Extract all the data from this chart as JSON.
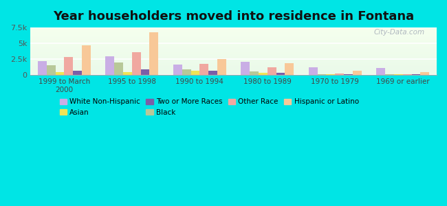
{
  "title": "Year householders moved into residence in Fontana",
  "categories": [
    "1999 to March\n2000",
    "1995 to 1998",
    "1990 to 1994",
    "1980 to 1989",
    "1970 to 1979",
    "1969 or earlier"
  ],
  "series": [
    {
      "label": "White Non-Hispanic",
      "color": "#c9aee5",
      "values": [
        2200,
        2900,
        1650,
        2050,
        1250,
        1150
      ]
    },
    {
      "label": "Black",
      "color": "#b8c898",
      "values": [
        1500,
        1950,
        850,
        600,
        80,
        80
      ]
    },
    {
      "label": "Asian",
      "color": "#f0e455",
      "values": [
        450,
        450,
        650,
        350,
        80,
        80
      ]
    },
    {
      "label": "Other Race",
      "color": "#f0a8a0",
      "values": [
        2850,
        3650,
        1750,
        1200,
        280,
        80
      ]
    },
    {
      "label": "Two or More Races",
      "color": "#7B5EA7",
      "values": [
        650,
        850,
        650,
        380,
        80,
        80
      ]
    },
    {
      "label": "Hispanic or Latino",
      "color": "#f8c898",
      "values": [
        4650,
        6700,
        2550,
        1850,
        680,
        480
      ]
    }
  ],
  "ylim": [
    0,
    7500
  ],
  "yticks": [
    0,
    2500,
    5000,
    7500
  ],
  "ytick_labels": [
    "0",
    "2.5k",
    "5k",
    "7.5k"
  ],
  "fig_bg_color": "#00e5e5",
  "plot_bg_gradient": [
    "#eafaea",
    "#f5ffee"
  ],
  "bar_width": 0.13,
  "watermark": "City-Data.com",
  "legend_order": [
    0,
    2,
    4,
    1,
    3,
    5
  ],
  "legend_ncol": 4
}
